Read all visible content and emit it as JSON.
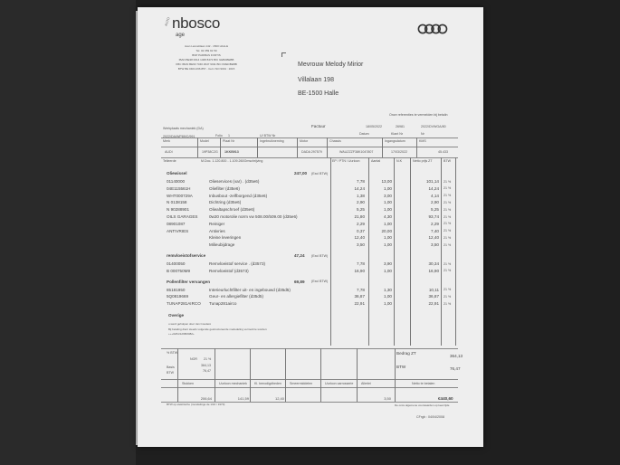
{
  "dealer": {
    "logo": "nbosco",
    "logo_sub": "age",
    "tag": "AUTO",
    "address": [
      "Jean Lanceltlaan 142 - 1500 HALLE",
      "Tel. 02 359 91 59",
      "BNP PARIBAS FORTIS",
      "IBAN BE38 0014 1468 8472 BIC GEBABEBB",
      "KBC IBAN BE93 7340 2947 9011 BIC KREDBEBB",
      "BTW BE 0404.266.857 - Cert. ISO 9001 : 2015"
    ],
    "brand_icon": "audi-rings-icon"
  },
  "customer": {
    "name": "Mevrouw Melody Mirior",
    "street": "Villalaan 198",
    "city": "BE-1500 Halle"
  },
  "header": {
    "references_note": "Onze referenties te vermelden bij betalin",
    "workshop": "Werkplaats mechaniek (DA)",
    "doc_type": "Factuur",
    "date": "18/05/2022",
    "client_nr": "26981",
    "invoice_nr": "2022/DVWGA/80",
    "date_label": "Datum",
    "client_label": "Klant Nr",
    "nr_label": "Nr",
    "order_ref": "2022/DA/WP89/C/991",
    "folio_label": "Folio",
    "folio": "1",
    "vat_label": "U/ BTW Nr"
  },
  "vehicle": {
    "labels": [
      "Merk",
      "Model",
      "Plaat Nr",
      "Ingebruikneming",
      "Motor",
      "Chassis",
      "Ingangsdatum",
      "KMS"
    ],
    "values": [
      "AUDI",
      "19P38C2G",
      "1KKB913",
      "",
      "DADA 297579",
      "WAUZZZF38K1047807",
      "17/03/2022",
      "45.433"
    ]
  },
  "table": {
    "ref_label": "Telleerde",
    "ref_value": "M.Doc. 1.120.800 - 1.109.260Omschrijving",
    "columns": [
      "EP / PTN / Uurloon",
      "Aantal",
      "N.K",
      "Netto prijs ZT",
      "BTW"
    ]
  },
  "sections": [
    {
      "title": "Oliewissel",
      "total": "247,00",
      "total_note": "(Excl BTW)",
      "items": [
        {
          "code": "01140000",
          "desc": "Olieservices (var) . (d35e6)",
          "ep": "7,78",
          "qty": "13,00",
          "net": "101,14",
          "vat": "21 %"
        },
        {
          "code": "04E115561H",
          "desc": "Oliefilter (d35e6)",
          "ep": "14,24",
          "qty": "1,00",
          "net": "14,24",
          "vat": "21 %"
        },
        {
          "code": "WHT000729A",
          "desc": "Inbusbout -zelfborgend (d35e6)",
          "ep": "1,38",
          "qty": "3,00",
          "net": "4,14",
          "vat": "21 %"
        },
        {
          "code": "N  0138158",
          "desc": "Dichtring (d35e6)",
          "ep": "2,90",
          "qty": "1,00",
          "net": "2,90",
          "vat": "21 %"
        },
        {
          "code": "N  90288901",
          "desc": "Oliealtapschroef (d35e6)",
          "ep": "5,25",
          "qty": "1,00",
          "net": "5,25",
          "vat": "21 %"
        },
        {
          "code": "OILS  GARAGES",
          "desc": "0w20 motorolie norm vw 508.00/509.00 (d35e6)",
          "ep": "21,80",
          "qty": "4,30",
          "net": "93,74",
          "vat": "21 %"
        },
        {
          "code": "08901087",
          "desc": "Reiniger",
          "ep": "2,29",
          "qty": "1,00",
          "net": "2,29",
          "vat": "21 %"
        },
        {
          "code": "ANTIVRIES",
          "desc": "Antivries",
          "ep": "0,37",
          "qty": "20,00",
          "net": "7,40",
          "vat": "21 %"
        },
        {
          "code": "",
          "desc": "Kleine leveringen",
          "ep": "12,40",
          "qty": "1,00",
          "net": "12,40",
          "vat": "21 %"
        },
        {
          "code": "",
          "desc": "Milieubijdrage",
          "ep": "3,50",
          "qty": "1,00",
          "net": "3,50",
          "vat": "21 %"
        }
      ]
    },
    {
      "title": "remvloeistofservice",
      "total": "47,24",
      "total_note": "(Excl BTW)",
      "items": [
        {
          "code": "01400050",
          "desc": "Remvloeistof service . (d3573)",
          "ep": "7,78",
          "qty": "3,90",
          "net": "30,34",
          "vat": "21 %"
        },
        {
          "code": "B  000750M9",
          "desc": "Remvloeistof (d3573)",
          "ep": "16,90",
          "qty": "1,00",
          "net": "16,90",
          "vat": "21 %"
        }
      ]
    },
    {
      "title": "Pollenfilter vervangen",
      "total": "69,89",
      "total_note": "(Excl BTW)",
      "items": [
        {
          "code": "85181950",
          "desc": "Interieurluchtfilter uit- en ingebouwd (d35d5)",
          "ep": "7,78",
          "qty": "1,30",
          "net": "10,11",
          "vat": "21 %"
        },
        {
          "code": "5Q0819669",
          "desc": "Geur- en allergiefilter (d35d5)",
          "ep": "36,87",
          "qty": "1,00",
          "net": "36,87",
          "vat": "21 %"
        },
        {
          "code": "TUNAP281AIRCO",
          "desc": "Tunap281airco",
          "ep": "22,91",
          "qty": "1,00",
          "net": "22,91",
          "vat": "21 %"
        }
      ]
    }
  ],
  "other": {
    "title": "Overige",
    "lines": [
      "u werd geholpen door Jan Couderé",
      "Bij betaling dient steeds volgende gestructureerde mededeling vermeld te worden:",
      "+++0261/1298/0082+"
    ]
  },
  "totals": {
    "vat_label": "% BTW",
    "vat_code": "NOR",
    "vat_rate": "21 %",
    "base_label": "Basis",
    "base": "364,13",
    "btw_label": "BTW",
    "btw": "76,47",
    "amount_label": "Bedrag ZT",
    "amount": "364,13",
    "btw_total_label": "BTW",
    "btw_total": "76,47",
    "columns": [
      "Stukken",
      "Uurloon mechaniek",
      "Kl. benodigdheden",
      "Smeermiddelen",
      "Uurloon carrosserie",
      "Allerlei"
    ],
    "values": [
      "206,64",
      "141,59",
      "12,40",
      "",
      "",
      "3,50"
    ],
    "net_label": "Netto te betalen",
    "net": "€440,60"
  },
  "footer": {
    "left": "BTW op elektrische (mondelinge de 1/16 / 1970)",
    "right": "De onze algemene voorwaarden op keerzijde",
    "doc_ref": "CFrgb : 04/04/2008"
  }
}
